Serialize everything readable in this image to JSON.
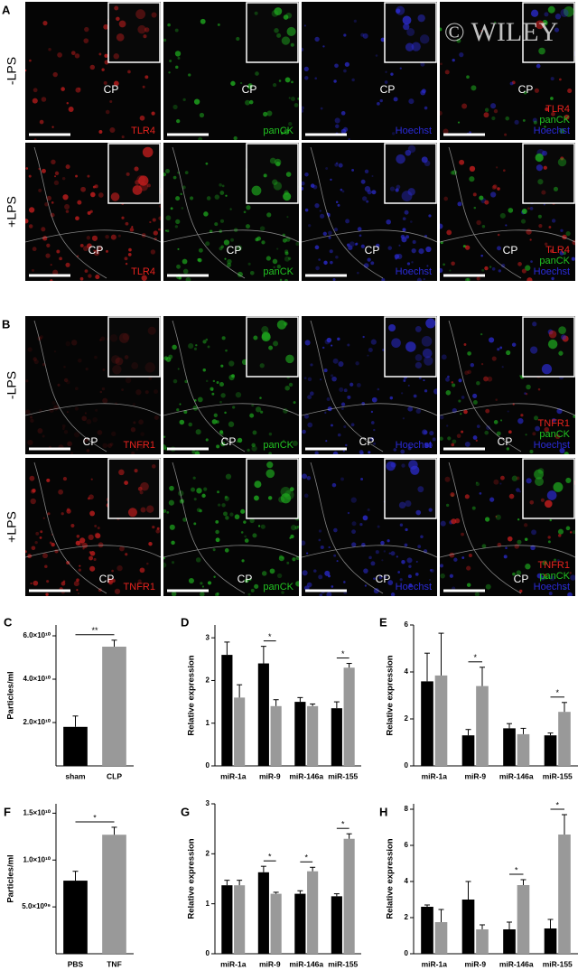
{
  "figure": {
    "watermark": "© WILEY",
    "panels": [
      {
        "label": "A",
        "rows": [
          {
            "condition": "-LPS",
            "cells": [
              {
                "structure": "CP",
                "stains": [
                  {
                    "text": "TLR4",
                    "color": "#e8231e"
                  }
                ]
              },
              {
                "structure": "CP",
                "stains": [
                  {
                    "text": "panCK",
                    "color": "#22c322"
                  }
                ]
              },
              {
                "structure": "CP",
                "stains": [
                  {
                    "text": "Hoechst",
                    "color": "#2a2ad8"
                  }
                ]
              },
              {
                "structure": "CP",
                "stains": [
                  {
                    "text": "TLR4",
                    "color": "#e8231e"
                  },
                  {
                    "text": "panCK",
                    "color": "#22c322"
                  },
                  {
                    "text": "Hoechst",
                    "color": "#2a2ad8"
                  }
                ]
              }
            ]
          },
          {
            "condition": "+LPS",
            "cells": [
              {
                "structure": "CP",
                "stains": [
                  {
                    "text": "TLR4",
                    "color": "#e8231e"
                  }
                ]
              },
              {
                "structure": "CP",
                "stains": [
                  {
                    "text": "panCK",
                    "color": "#22c322"
                  }
                ]
              },
              {
                "structure": "CP",
                "stains": [
                  {
                    "text": "Hoechst",
                    "color": "#2a2ad8"
                  }
                ]
              },
              {
                "structure": "CP",
                "stains": [
                  {
                    "text": "TLR4",
                    "color": "#e8231e"
                  },
                  {
                    "text": "panCK",
                    "color": "#22c322"
                  },
                  {
                    "text": "Hoechst",
                    "color": "#2a2ad8"
                  }
                ]
              }
            ]
          }
        ]
      },
      {
        "label": "B",
        "rows": [
          {
            "condition": "-LPS",
            "cells": [
              {
                "structure": "CP",
                "stains": [
                  {
                    "text": "TNFR1",
                    "color": "#e8231e"
                  }
                ]
              },
              {
                "structure": "CP",
                "stains": [
                  {
                    "text": "panCK",
                    "color": "#22c322"
                  }
                ]
              },
              {
                "structure": "CP",
                "stains": [
                  {
                    "text": "Hoechst",
                    "color": "#2a2ad8"
                  }
                ]
              },
              {
                "structure": "CP",
                "stains": [
                  {
                    "text": "TNFR1",
                    "color": "#e8231e"
                  },
                  {
                    "text": "panCK",
                    "color": "#22c322"
                  },
                  {
                    "text": "Hoechst",
                    "color": "#2a2ad8"
                  }
                ]
              }
            ]
          },
          {
            "condition": "+LPS",
            "cells": [
              {
                "structure": "CP",
                "stains": [
                  {
                    "text": "TNFR1",
                    "color": "#e8231e"
                  }
                ]
              },
              {
                "structure": "CP",
                "stains": [
                  {
                    "text": "panCK",
                    "color": "#22c322"
                  }
                ]
              },
              {
                "structure": "CP",
                "stains": [
                  {
                    "text": "Hoechst",
                    "color": "#2a2ad8"
                  }
                ]
              },
              {
                "structure": "CP",
                "stains": [
                  {
                    "text": "TNFR1",
                    "color": "#e8231e"
                  },
                  {
                    "text": "panCK",
                    "color": "#22c322"
                  },
                  {
                    "text": "Hoechst",
                    "color": "#2a2ad8"
                  }
                ]
              }
            ]
          }
        ]
      }
    ]
  },
  "chart_data": [
    {
      "type": "bar",
      "panel_label": "C",
      "ylabel": "Particles/ml",
      "categories": [
        "sham",
        "CLP"
      ],
      "values": [
        18000000000,
        55000000000
      ],
      "errors": [
        5000000000,
        3000000000
      ],
      "colors": [
        "#000000",
        "#999999"
      ],
      "significance": "**",
      "ylim": [
        0,
        65000000000
      ],
      "yticks": [
        {
          "value": 20000000000,
          "label": "2.0×10¹⁰"
        },
        {
          "value": 40000000000,
          "label": "4.0×10¹⁰"
        },
        {
          "value": 60000000000,
          "label": "6.0×10¹⁰"
        }
      ]
    },
    {
      "type": "bar",
      "panel_label": "D",
      "ylabel": "Relative expression",
      "categories": [
        "miR-1a",
        "miR-9",
        "miR-146a",
        "miR-155"
      ],
      "series": [
        {
          "color": "#000000",
          "values": [
            2.6,
            2.4,
            1.5,
            1.35
          ],
          "errors": [
            0.3,
            0.4,
            0.1,
            0.15
          ]
        },
        {
          "color": "#999999",
          "values": [
            1.6,
            1.4,
            1.4,
            2.3
          ],
          "errors": [
            0.3,
            0.15,
            0.05,
            0.1
          ]
        }
      ],
      "significance": [
        null,
        "*",
        null,
        "*"
      ],
      "ylim": [
        0,
        3.3
      ],
      "yticks": [
        0,
        1,
        2,
        3
      ]
    },
    {
      "type": "bar",
      "panel_label": "E",
      "ylabel": "Relative expression",
      "categories": [
        "miR-1a",
        "miR-9",
        "miR-146a",
        "miR-155"
      ],
      "series": [
        {
          "color": "#000000",
          "values": [
            3.6,
            1.3,
            1.6,
            1.3
          ],
          "errors": [
            1.2,
            0.25,
            0.2,
            0.1
          ]
        },
        {
          "color": "#999999",
          "values": [
            3.85,
            3.4,
            1.35,
            2.3
          ],
          "errors": [
            1.8,
            0.8,
            0.25,
            0.4
          ]
        }
      ],
      "significance": [
        null,
        "*",
        null,
        "*"
      ],
      "ylim": [
        0,
        6
      ],
      "yticks": [
        0,
        2,
        4,
        6
      ]
    },
    {
      "type": "bar",
      "panel_label": "F",
      "ylabel": "Particles/ml",
      "categories": [
        "PBS",
        "TNF"
      ],
      "values": [
        7800000000,
        12700000000
      ],
      "errors": [
        1000000000,
        800000000
      ],
      "colors": [
        "#000000",
        "#999999"
      ],
      "significance": "*",
      "ylim": [
        0,
        16000000000
      ],
      "yticks": [
        {
          "value": 5000000000,
          "label": "5.0×10⁰⁹"
        },
        {
          "value": 10000000000,
          "label": "1.0×10¹⁰"
        },
        {
          "value": 15000000000,
          "label": "1.5×10¹⁰"
        }
      ]
    },
    {
      "type": "bar",
      "panel_label": "G",
      "ylabel": "Relative expression",
      "categories": [
        "miR-1a",
        "miR-9",
        "miR-146a",
        "miR-155"
      ],
      "series": [
        {
          "color": "#000000",
          "values": [
            1.37,
            1.63,
            1.2,
            1.15
          ],
          "errors": [
            0.1,
            0.12,
            0.06,
            0.05
          ]
        },
        {
          "color": "#999999",
          "values": [
            1.37,
            1.2,
            1.65,
            2.3
          ],
          "errors": [
            0.1,
            0.03,
            0.08,
            0.1
          ]
        }
      ],
      "significance": [
        null,
        "*",
        "*",
        "*"
      ],
      "ylim": [
        0,
        3
      ],
      "yticks": [
        0,
        1,
        2,
        3
      ]
    },
    {
      "type": "bar",
      "panel_label": "H",
      "ylabel": "Relative expression",
      "categories": [
        "miR-1a",
        "miR-9",
        "miR-146a",
        "miR-155"
      ],
      "series": [
        {
          "color": "#000000",
          "values": [
            2.6,
            3.0,
            1.35,
            1.4
          ],
          "errors": [
            0.1,
            1.0,
            0.4,
            0.5
          ]
        },
        {
          "color": "#999999",
          "values": [
            1.75,
            1.35,
            3.8,
            6.6
          ],
          "errors": [
            0.7,
            0.25,
            0.3,
            1.1
          ]
        }
      ],
      "significance": [
        null,
        null,
        "*",
        "*"
      ],
      "ylim": [
        0,
        8.3
      ],
      "yticks": [
        0,
        2,
        4,
        6,
        8
      ]
    }
  ]
}
